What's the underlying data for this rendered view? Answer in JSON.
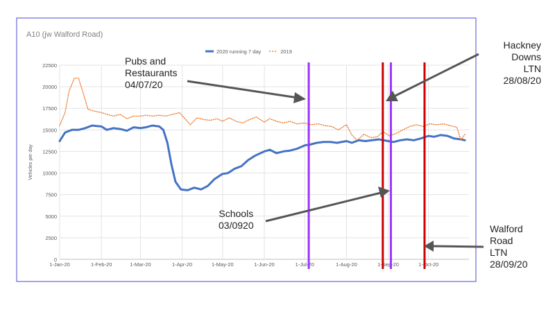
{
  "chart_data": {
    "type": "line",
    "title": "A10 (jw Walford Road)",
    "xlabel": "",
    "ylabel": "Vehicles per day",
    "ylim": [
      0,
      22500
    ],
    "yticks": [
      0,
      2500,
      5000,
      7500,
      10000,
      12500,
      15000,
      17500,
      20000,
      22500
    ],
    "xlim": [
      "2020-01-01",
      "2020-10-31"
    ],
    "xticks": [
      "2020-01-01",
      "2020-02-01",
      "2020-03-01",
      "2020-04-01",
      "2020-05-01",
      "2020-06-01",
      "2020-07-01",
      "2020-08-01",
      "2020-09-01",
      "2020-10-01"
    ],
    "xtick_labels": [
      "1-Jan-20",
      "1-Feb-20",
      "1-Mar-20",
      "1-Apr-20",
      "1-May-20",
      "1-Jun-20",
      "1-Jul-20",
      "1-Aug-20",
      "1-Sep-20",
      "1-Oct-20"
    ],
    "grid": true,
    "legend_position": "top-center",
    "series": [
      {
        "name": "2020 running 7 day",
        "color": "#4472c4",
        "style": "solid",
        "points": [
          [
            "2020-01-01",
            13700
          ],
          [
            "2020-01-05",
            14700
          ],
          [
            "2020-01-10",
            15000
          ],
          [
            "2020-01-15",
            15000
          ],
          [
            "2020-01-20",
            15200
          ],
          [
            "2020-01-25",
            15500
          ],
          [
            "2020-02-01",
            15400
          ],
          [
            "2020-02-05",
            15000
          ],
          [
            "2020-02-10",
            15200
          ],
          [
            "2020-02-15",
            15100
          ],
          [
            "2020-02-20",
            14900
          ],
          [
            "2020-02-25",
            15300
          ],
          [
            "2020-03-01",
            15200
          ],
          [
            "2020-03-05",
            15300
          ],
          [
            "2020-03-10",
            15500
          ],
          [
            "2020-03-15",
            15400
          ],
          [
            "2020-03-18",
            15000
          ],
          [
            "2020-03-21",
            13500
          ],
          [
            "2020-03-24",
            11000
          ],
          [
            "2020-03-27",
            9000
          ],
          [
            "2020-03-31",
            8100
          ],
          [
            "2020-04-05",
            8000
          ],
          [
            "2020-04-10",
            8300
          ],
          [
            "2020-04-15",
            8100
          ],
          [
            "2020-04-20",
            8500
          ],
          [
            "2020-04-25",
            9300
          ],
          [
            "2020-05-01",
            9900
          ],
          [
            "2020-05-05",
            10000
          ],
          [
            "2020-05-10",
            10500
          ],
          [
            "2020-05-15",
            10800
          ],
          [
            "2020-05-20",
            11500
          ],
          [
            "2020-05-25",
            12000
          ],
          [
            "2020-06-01",
            12500
          ],
          [
            "2020-06-05",
            12700
          ],
          [
            "2020-06-10",
            12300
          ],
          [
            "2020-06-15",
            12500
          ],
          [
            "2020-06-20",
            12600
          ],
          [
            "2020-06-25",
            12800
          ],
          [
            "2020-07-01",
            13200
          ],
          [
            "2020-07-05",
            13300
          ],
          [
            "2020-07-10",
            13500
          ],
          [
            "2020-07-15",
            13600
          ],
          [
            "2020-07-20",
            13600
          ],
          [
            "2020-07-25",
            13500
          ],
          [
            "2020-08-01",
            13700
          ],
          [
            "2020-08-05",
            13500
          ],
          [
            "2020-08-10",
            13800
          ],
          [
            "2020-08-15",
            13700
          ],
          [
            "2020-08-20",
            13800
          ],
          [
            "2020-08-25",
            13900
          ],
          [
            "2020-09-01",
            13700
          ],
          [
            "2020-09-05",
            13600
          ],
          [
            "2020-09-10",
            13800
          ],
          [
            "2020-09-15",
            13900
          ],
          [
            "2020-09-20",
            13800
          ],
          [
            "2020-09-25",
            14000
          ],
          [
            "2020-10-01",
            14300
          ],
          [
            "2020-10-05",
            14200
          ],
          [
            "2020-10-10",
            14400
          ],
          [
            "2020-10-15",
            14300
          ],
          [
            "2020-10-20",
            14000
          ],
          [
            "2020-10-25",
            13900
          ],
          [
            "2020-10-28",
            13800
          ]
        ]
      },
      {
        "name": "2019",
        "color": "#ed7d31",
        "style": "dotted",
        "points": [
          [
            "2020-01-01",
            15500
          ],
          [
            "2020-01-05",
            17000
          ],
          [
            "2020-01-08",
            19500
          ],
          [
            "2020-01-12",
            21000
          ],
          [
            "2020-01-15",
            21000
          ],
          [
            "2020-01-18",
            19500
          ],
          [
            "2020-01-22",
            17400
          ],
          [
            "2020-01-26",
            17200
          ],
          [
            "2020-02-01",
            17000
          ],
          [
            "2020-02-05",
            16800
          ],
          [
            "2020-02-10",
            16600
          ],
          [
            "2020-02-15",
            16800
          ],
          [
            "2020-02-20",
            16300
          ],
          [
            "2020-02-25",
            16600
          ],
          [
            "2020-03-01",
            16600
          ],
          [
            "2020-03-05",
            16700
          ],
          [
            "2020-03-10",
            16600
          ],
          [
            "2020-03-15",
            16700
          ],
          [
            "2020-03-20",
            16600
          ],
          [
            "2020-03-25",
            16800
          ],
          [
            "2020-03-30",
            17000
          ],
          [
            "2020-04-03",
            16300
          ],
          [
            "2020-04-07",
            15600
          ],
          [
            "2020-04-12",
            16400
          ],
          [
            "2020-04-17",
            16200
          ],
          [
            "2020-04-22",
            16100
          ],
          [
            "2020-04-27",
            16300
          ],
          [
            "2020-05-01",
            16000
          ],
          [
            "2020-05-06",
            16400
          ],
          [
            "2020-05-11",
            16000
          ],
          [
            "2020-05-16",
            15800
          ],
          [
            "2020-05-21",
            16200
          ],
          [
            "2020-05-26",
            16500
          ],
          [
            "2020-06-01",
            15900
          ],
          [
            "2020-06-05",
            16300
          ],
          [
            "2020-06-10",
            16000
          ],
          [
            "2020-06-15",
            15800
          ],
          [
            "2020-06-20",
            16000
          ],
          [
            "2020-06-25",
            15700
          ],
          [
            "2020-07-01",
            15800
          ],
          [
            "2020-07-06",
            15600
          ],
          [
            "2020-07-11",
            15700
          ],
          [
            "2020-07-16",
            15500
          ],
          [
            "2020-07-21",
            15400
          ],
          [
            "2020-07-26",
            15000
          ],
          [
            "2020-08-01",
            15600
          ],
          [
            "2020-08-05",
            14400
          ],
          [
            "2020-08-09",
            13800
          ],
          [
            "2020-08-14",
            14500
          ],
          [
            "2020-08-19",
            14100
          ],
          [
            "2020-08-24",
            14200
          ],
          [
            "2020-08-28",
            14800
          ],
          [
            "2020-09-02",
            14300
          ],
          [
            "2020-09-07",
            14600
          ],
          [
            "2020-09-12",
            15000
          ],
          [
            "2020-09-17",
            15400
          ],
          [
            "2020-09-22",
            15600
          ],
          [
            "2020-09-27",
            15400
          ],
          [
            "2020-10-02",
            15700
          ],
          [
            "2020-10-07",
            15600
          ],
          [
            "2020-10-12",
            15700
          ],
          [
            "2020-10-17",
            15500
          ],
          [
            "2020-10-22",
            15300
          ],
          [
            "2020-10-25",
            13800
          ],
          [
            "2020-10-28",
            14500
          ]
        ]
      }
    ],
    "vertical_markers": [
      {
        "date": "2020-07-04",
        "color": "#9933ff"
      },
      {
        "date": "2020-08-28",
        "color": "#cc0000"
      },
      {
        "date": "2020-09-03",
        "color": "#9933ff"
      },
      {
        "date": "2020-09-28",
        "color": "#cc0000"
      }
    ]
  },
  "annotations": {
    "pubs": [
      "Pubs and",
      "Restaurants",
      "04/07/20"
    ],
    "hackney": [
      "Hackney",
      "Downs",
      "LTN",
      "28/08/20"
    ],
    "schools": [
      "Schools",
      "03/0920"
    ],
    "walford": [
      "Walford",
      "Road",
      "LTN",
      "28/09/20"
    ]
  }
}
